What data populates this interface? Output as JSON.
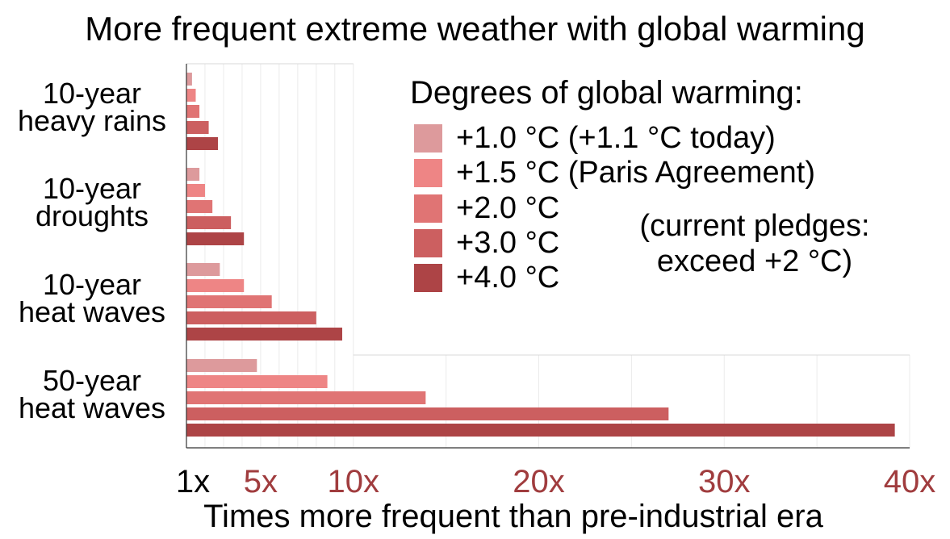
{
  "title": "More frequent extreme weather with global warming",
  "legend": {
    "title": "Degrees of global warming:",
    "items": [
      {
        "label": "+1.0 °C (+1.1 °C today)",
        "color": "#dd9a9c"
      },
      {
        "label": "+1.5 °C (Paris Agreement)",
        "color": "#ee8585"
      },
      {
        "label": "+2.0 °C",
        "color": "#e07474"
      },
      {
        "label": "+3.0 °C",
        "color": "#cc5f60"
      },
      {
        "label": "+4.0 °C",
        "color": "#ad4446"
      }
    ]
  },
  "note": "(current pledges:\nexceed +2 °C)",
  "xlabel": "Times more frequent than pre-industrial era",
  "chart_data": {
    "type": "bar",
    "orientation": "horizontal",
    "title": "More frequent extreme weather with global warming",
    "xlabel": "Times more frequent than pre-industrial era",
    "xlim": [
      1,
      40
    ],
    "xticks": [
      {
        "value": 1,
        "label": "1x",
        "color": "#000000"
      },
      {
        "value": 5,
        "label": "5x",
        "color": "#a03c3e"
      },
      {
        "value": 10,
        "label": "10x",
        "color": "#a03c3e"
      },
      {
        "value": 20,
        "label": "20x",
        "color": "#a03c3e"
      },
      {
        "value": 30,
        "label": "30x",
        "color": "#a03c3e"
      },
      {
        "value": 40,
        "label": "40x",
        "color": "#a03c3e"
      }
    ],
    "categories": [
      "10-year\nheavy rains",
      "10-year\ndroughts",
      "10-year\nheat waves",
      "50-year\nheat waves"
    ],
    "series": [
      {
        "name": "+1.0 °C (+1.1 °C today)",
        "values": [
          1.3,
          1.7,
          2.8,
          4.8
        ]
      },
      {
        "name": "+1.5 °C (Paris Agreement)",
        "values": [
          1.5,
          2.0,
          4.1,
          8.6
        ]
      },
      {
        "name": "+2.0 °C",
        "values": [
          1.7,
          2.4,
          5.6,
          13.9
        ]
      },
      {
        "name": "+3.0 °C",
        "values": [
          2.2,
          3.4,
          8.0,
          27.0
        ]
      },
      {
        "name": "+4.0 °C",
        "values": [
          2.7,
          4.1,
          9.4,
          39.2
        ]
      }
    ],
    "grid": true,
    "legend_position": "top-right"
  }
}
